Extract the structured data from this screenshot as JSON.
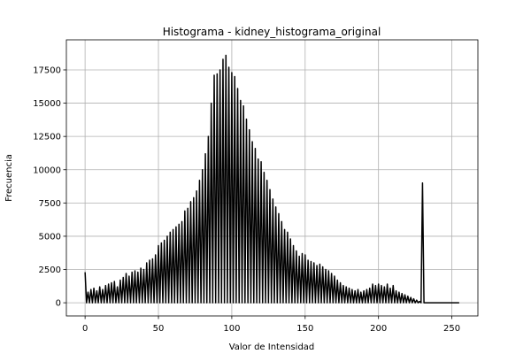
{
  "chart_data": {
    "type": "line",
    "title": "Histograma - kidney_histograma_original",
    "xlabel": "Valor de Intensidad",
    "ylabel": "Frecuencia",
    "color": "#000000",
    "grid": true,
    "xlim": [
      -12.75,
      267.75
    ],
    "ylim": [
      -990,
      19760
    ],
    "xticks": [
      0,
      50,
      100,
      150,
      200,
      250
    ],
    "yticks": [
      0,
      2500,
      5000,
      7500,
      10000,
      12500,
      15000,
      17500
    ],
    "x": [
      0,
      1,
      2,
      3,
      4,
      5,
      6,
      7,
      8,
      9,
      10,
      11,
      12,
      13,
      14,
      15,
      16,
      17,
      18,
      19,
      20,
      21,
      22,
      23,
      24,
      25,
      26,
      27,
      28,
      29,
      30,
      31,
      32,
      33,
      34,
      35,
      36,
      37,
      38,
      39,
      40,
      41,
      42,
      43,
      44,
      45,
      46,
      47,
      48,
      49,
      50,
      51,
      52,
      53,
      54,
      55,
      56,
      57,
      58,
      59,
      60,
      61,
      62,
      63,
      64,
      65,
      66,
      67,
      68,
      69,
      70,
      71,
      72,
      73,
      74,
      75,
      76,
      77,
      78,
      79,
      80,
      81,
      82,
      83,
      84,
      85,
      86,
      87,
      88,
      89,
      90,
      91,
      92,
      93,
      94,
      95,
      96,
      97,
      98,
      99,
      100,
      101,
      102,
      103,
      104,
      105,
      106,
      107,
      108,
      109,
      110,
      111,
      112,
      113,
      114,
      115,
      116,
      117,
      118,
      119,
      120,
      121,
      122,
      123,
      124,
      125,
      126,
      127,
      128,
      129,
      130,
      131,
      132,
      133,
      134,
      135,
      136,
      137,
      138,
      139,
      140,
      141,
      142,
      143,
      144,
      145,
      146,
      147,
      148,
      149,
      150,
      151,
      152,
      153,
      154,
      155,
      156,
      157,
      158,
      159,
      160,
      161,
      162,
      163,
      164,
      165,
      166,
      167,
      168,
      169,
      170,
      171,
      172,
      173,
      174,
      175,
      176,
      177,
      178,
      179,
      180,
      181,
      182,
      183,
      184,
      185,
      186,
      187,
      188,
      189,
      190,
      191,
      192,
      193,
      194,
      195,
      196,
      197,
      198,
      199,
      200,
      201,
      202,
      203,
      204,
      205,
      206,
      207,
      208,
      209,
      210,
      211,
      212,
      213,
      214,
      215,
      216,
      217,
      218,
      219,
      220,
      221,
      222,
      223,
      224,
      225,
      226,
      227,
      228,
      229,
      230,
      231,
      232,
      233,
      234,
      235,
      236,
      237,
      238,
      239,
      240,
      241,
      242,
      243,
      244,
      245,
      246,
      247,
      248,
      249,
      250,
      251,
      252,
      253,
      254,
      255
    ],
    "values": [
      2300,
      0,
      800,
      0,
      1000,
      0,
      1100,
      0,
      900,
      0,
      1200,
      0,
      1000,
      0,
      1300,
      0,
      1400,
      0,
      1500,
      0,
      1600,
      0,
      1200,
      0,
      1700,
      0,
      1900,
      0,
      2200,
      0,
      2000,
      0,
      2300,
      0,
      2400,
      0,
      2300,
      0,
      2600,
      0,
      2500,
      0,
      3000,
      0,
      3200,
      0,
      3300,
      0,
      3600,
      0,
      4300,
      0,
      4500,
      0,
      4700,
      0,
      5000,
      0,
      5300,
      0,
      5500,
      0,
      5700,
      0,
      5900,
      0,
      6100,
      0,
      6900,
      0,
      7100,
      0,
      7600,
      0,
      7900,
      0,
      8400,
      0,
      9200,
      0,
      10000,
      0,
      11200,
      0,
      12500,
      0,
      15000,
      0,
      17100,
      0,
      17200,
      0,
      17500,
      0,
      18300,
      0,
      18600,
      0,
      17700,
      0,
      17300,
      0,
      17000,
      0,
      16100,
      0,
      15200,
      0,
      14800,
      0,
      13800,
      0,
      13000,
      0,
      12100,
      0,
      11600,
      0,
      10800,
      0,
      10600,
      0,
      9800,
      0,
      9200,
      0,
      8500,
      0,
      7800,
      0,
      7200,
      0,
      6700,
      0,
      6100,
      0,
      5500,
      0,
      5300,
      0,
      4800,
      0,
      4300,
      0,
      3900,
      0,
      3500,
      0,
      3700,
      0,
      3600,
      0,
      3200,
      0,
      3100,
      0,
      3000,
      0,
      2800,
      0,
      2900,
      0,
      2700,
      0,
      2500,
      0,
      2400,
      0,
      2200,
      0,
      2000,
      0,
      1700,
      0,
      1500,
      0,
      1300,
      0,
      1200,
      0,
      1100,
      0,
      1000,
      0,
      900,
      0,
      1000,
      0,
      800,
      0,
      900,
      0,
      1000,
      0,
      1100,
      0,
      1400,
      0,
      1300,
      0,
      1400,
      0,
      1300,
      0,
      1200,
      0,
      1400,
      0,
      1100,
      0,
      1300,
      0,
      900,
      0,
      800,
      0,
      700,
      0,
      600,
      0,
      500,
      0,
      400,
      0,
      300,
      0,
      200,
      0,
      100,
      0,
      9000,
      0,
      0,
      0,
      0,
      0,
      0,
      0,
      0,
      0,
      0,
      0,
      0,
      0,
      0,
      0,
      0,
      0,
      0,
      0,
      0,
      0,
      0,
      0,
      0,
      0
    ]
  }
}
